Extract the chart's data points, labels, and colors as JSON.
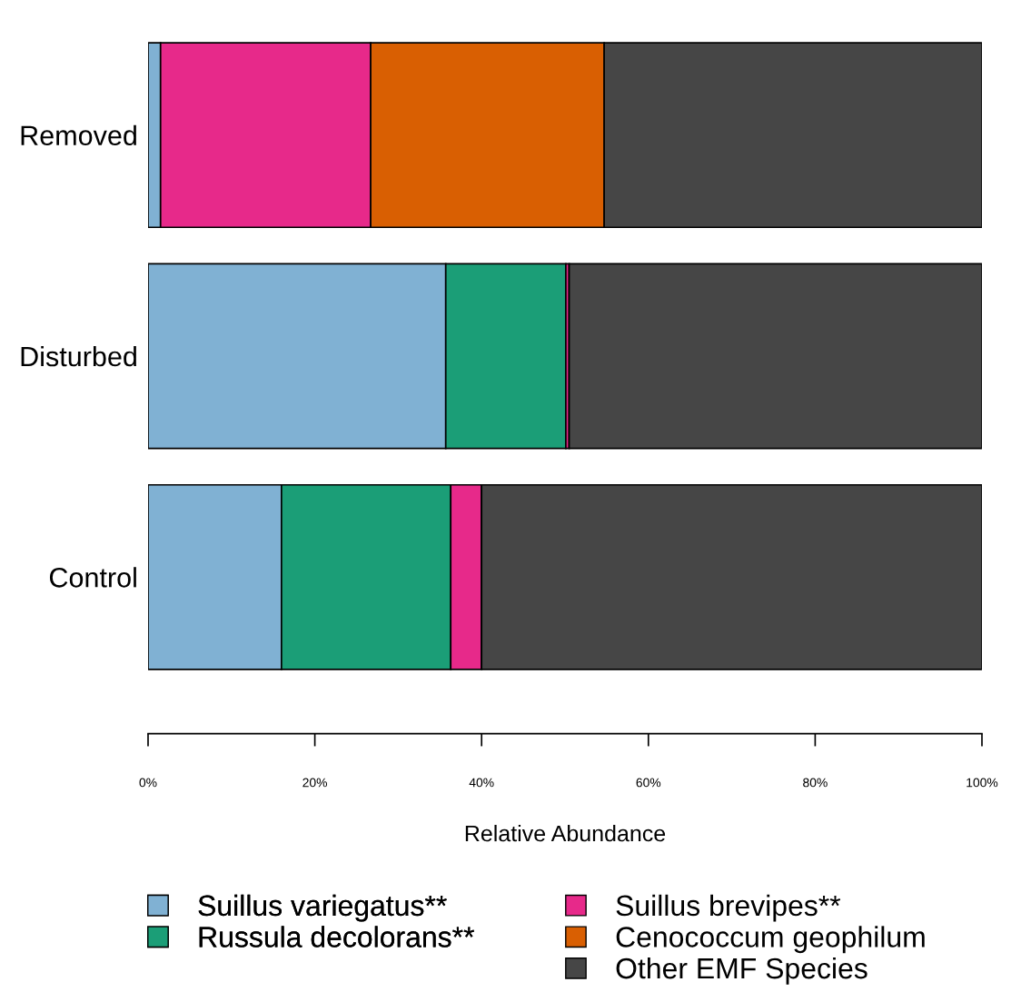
{
  "chart_data": {
    "type": "bar",
    "orientation": "horizontal",
    "stacked": true,
    "xlabel": "Relative Abundance",
    "categories": [
      "Removed",
      "Disturbed",
      "Control"
    ],
    "series": [
      {
        "name": "Suillus variegatus**",
        "color": "#80b1d3",
        "values": [
          1.5,
          35.7,
          16.0
        ]
      },
      {
        "name": "Russula decolorans**",
        "color": "#1b9e77",
        "values": [
          0,
          14.4,
          20.3
        ]
      },
      {
        "name": "Suillus brevipes**",
        "color": "#e7298a",
        "values": [
          25.2,
          0.4,
          3.7
        ]
      },
      {
        "name": "Cenococcum geophilum",
        "color": "#d95f02",
        "values": [
          28.0,
          0,
          0
        ]
      },
      {
        "name": "Other EMF Species",
        "color": "#464646",
        "values": [
          45.3,
          49.5,
          60.0
        ]
      }
    ],
    "xlim": [
      0,
      100
    ],
    "xticks": [
      {
        "value": 0,
        "label": "0%"
      },
      {
        "value": 20,
        "label": "20%"
      },
      {
        "value": 40,
        "label": "40%"
      },
      {
        "value": 60,
        "label": "60%"
      },
      {
        "value": 80,
        "label": "80%"
      },
      {
        "value": 100,
        "label": "100%"
      }
    ],
    "grid": false,
    "legend": "bottom"
  }
}
